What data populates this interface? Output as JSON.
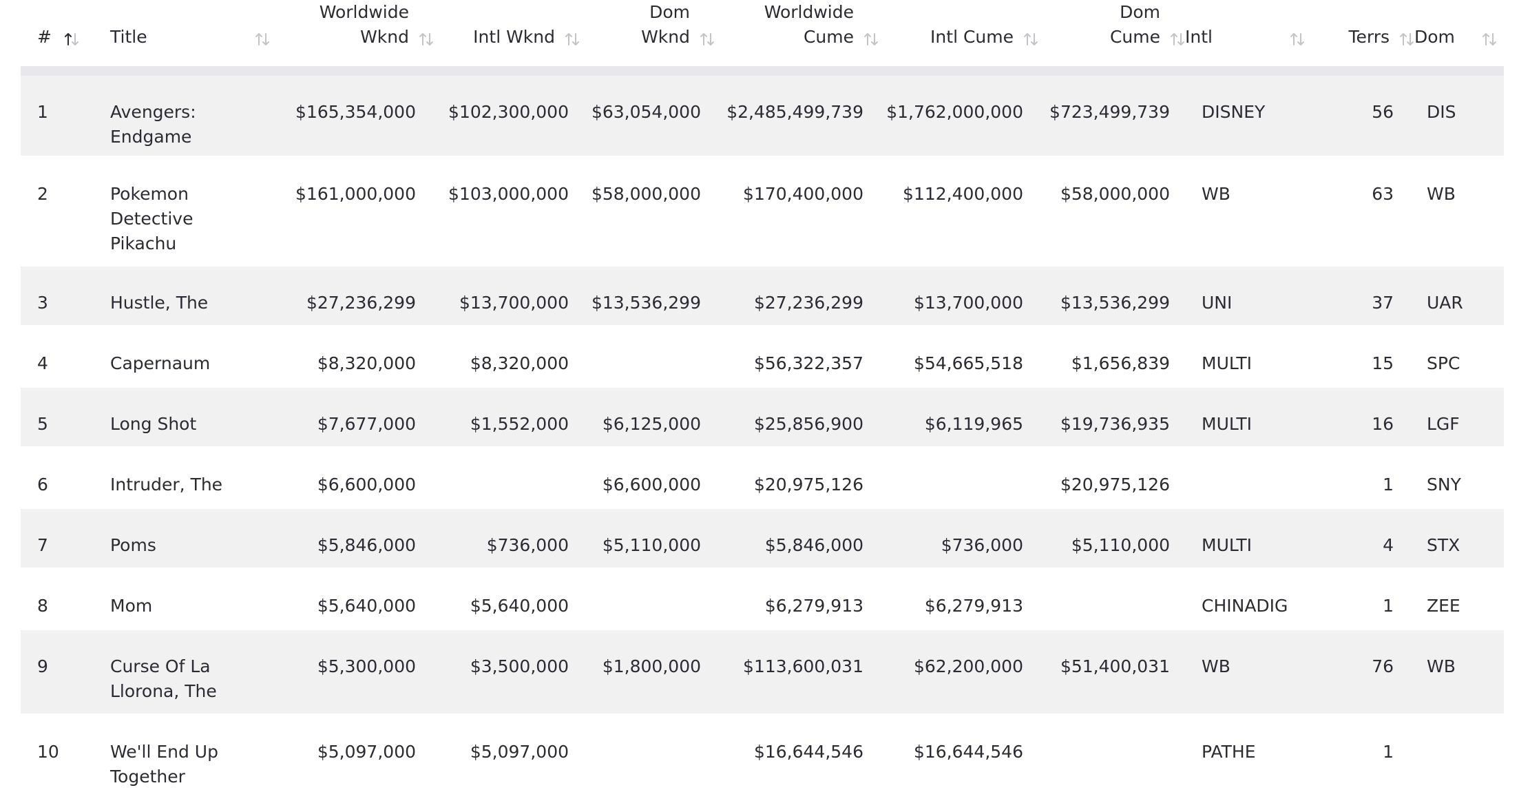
{
  "table": {
    "headers": [
      {
        "line1": "",
        "line2": "#",
        "align": "left"
      },
      {
        "line1": "",
        "line2": "Title",
        "align": "left"
      },
      {
        "line1": "Worldwide",
        "line2": "Wknd",
        "align": "right"
      },
      {
        "line1": "",
        "line2": "Intl Wknd",
        "align": "right"
      },
      {
        "line1": "Dom",
        "line2": "Wknd",
        "align": "right"
      },
      {
        "line1": "Worldwide",
        "line2": "Cume",
        "align": "right"
      },
      {
        "line1": "",
        "line2": "Intl Cume",
        "align": "right"
      },
      {
        "line1": "Dom",
        "line2": "Cume",
        "align": "right"
      },
      {
        "line1": "",
        "line2": "Intl",
        "align": "left"
      },
      {
        "line1": "",
        "line2": "Terrs",
        "align": "right"
      },
      {
        "line1": "",
        "line2": "Dom",
        "align": "left"
      }
    ],
    "rows": [
      {
        "rank": "1",
        "title_lines": [
          "Avengers:",
          "Endgame"
        ],
        "ww_wknd": "$165,354,000",
        "intl_wknd": "$102,300,000",
        "dom_wknd": "$63,054,000",
        "ww_cume": "$2,485,499,739",
        "intl_cume": "$1,762,000,000",
        "dom_cume": "$723,499,739",
        "intl": "DISNEY",
        "terrs": "56",
        "dom": "DIS"
      },
      {
        "rank": "2",
        "title_lines": [
          "Pokemon",
          "Detective",
          "Pikachu"
        ],
        "ww_wknd": "$161,000,000",
        "intl_wknd": "$103,000,000",
        "dom_wknd": "$58,000,000",
        "ww_cume": "$170,400,000",
        "intl_cume": "$112,400,000",
        "dom_cume": "$58,000,000",
        "intl": "WB",
        "terrs": "63",
        "dom": "WB"
      },
      {
        "rank": "3",
        "title_lines": [
          "Hustle, The"
        ],
        "ww_wknd": "$27,236,299",
        "intl_wknd": "$13,700,000",
        "dom_wknd": "$13,536,299",
        "ww_cume": "$27,236,299",
        "intl_cume": "$13,700,000",
        "dom_cume": "$13,536,299",
        "intl": "UNI",
        "terrs": "37",
        "dom": "UAR"
      },
      {
        "rank": "4",
        "title_lines": [
          "Capernaum"
        ],
        "ww_wknd": "$8,320,000",
        "intl_wknd": "$8,320,000",
        "dom_wknd": "",
        "ww_cume": "$56,322,357",
        "intl_cume": "$54,665,518",
        "dom_cume": "$1,656,839",
        "intl": "MULTI",
        "terrs": "15",
        "dom": "SPC"
      },
      {
        "rank": "5",
        "title_lines": [
          "Long Shot"
        ],
        "ww_wknd": "$7,677,000",
        "intl_wknd": "$1,552,000",
        "dom_wknd": "$6,125,000",
        "ww_cume": "$25,856,900",
        "intl_cume": "$6,119,965",
        "dom_cume": "$19,736,935",
        "intl": "MULTI",
        "terrs": "16",
        "dom": "LGF"
      },
      {
        "rank": "6",
        "title_lines": [
          "Intruder, The"
        ],
        "ww_wknd": "$6,600,000",
        "intl_wknd": "",
        "dom_wknd": "$6,600,000",
        "ww_cume": "$20,975,126",
        "intl_cume": "",
        "dom_cume": "$20,975,126",
        "intl": "",
        "terrs": "1",
        "dom": "SNY"
      },
      {
        "rank": "7",
        "title_lines": [
          "Poms"
        ],
        "ww_wknd": "$5,846,000",
        "intl_wknd": "$736,000",
        "dom_wknd": "$5,110,000",
        "ww_cume": "$5,846,000",
        "intl_cume": "$736,000",
        "dom_cume": "$5,110,000",
        "intl": "MULTI",
        "terrs": "4",
        "dom": "STX"
      },
      {
        "rank": "8",
        "title_lines": [
          "Mom"
        ],
        "ww_wknd": "$5,640,000",
        "intl_wknd": "$5,640,000",
        "dom_wknd": "",
        "ww_cume": "$6,279,913",
        "intl_cume": "$6,279,913",
        "dom_cume": "",
        "intl": "CHINADIG",
        "terrs": "1",
        "dom": "ZEE"
      },
      {
        "rank": "9",
        "title_lines": [
          "Curse Of La",
          "Llorona, The"
        ],
        "ww_wknd": "$5,300,000",
        "intl_wknd": "$3,500,000",
        "dom_wknd": "$1,800,000",
        "ww_cume": "$113,600,031",
        "intl_cume": "$62,200,000",
        "dom_cume": "$51,400,031",
        "intl": "WB",
        "terrs": "76",
        "dom": "WB"
      },
      {
        "rank": "10",
        "title_lines": [
          "We'll End Up",
          "Together"
        ],
        "ww_wknd": "$5,097,000",
        "intl_wknd": "$5,097,000",
        "dom_wknd": "",
        "ww_cume": "$16,644,546",
        "intl_cume": "$16,644,546",
        "dom_cume": "",
        "intl": "PATHE",
        "terrs": "1",
        "dom": ""
      }
    ]
  },
  "colors": {
    "text": "#2b2b33",
    "row_shade": "#f1f1f1",
    "header_rule": "#e8e8ec",
    "sort_inactive": "#c4c4c8",
    "sort_active": "#2b2b33"
  },
  "icons": {
    "sort_inactive": "sort-arrows-icon",
    "sort_active": "sort-ascending-icon"
  }
}
